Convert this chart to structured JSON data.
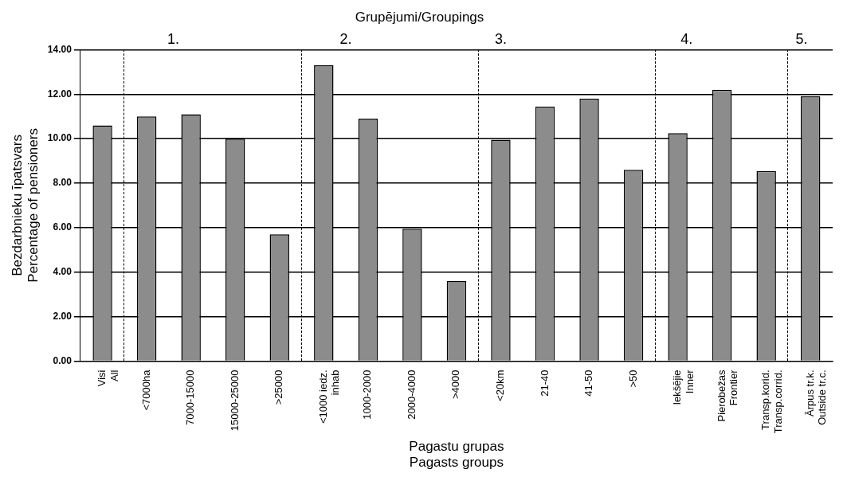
{
  "chart_data": {
    "type": "bar",
    "title": "Grupējumi/Groupings",
    "xlabel": "Pagastu grupas\nPagasts groups",
    "ylabel": "Bezdarbnieku īpatsvars\nPercentage of pensioners",
    "categories": [
      "Visi\nAll",
      "<7000ha",
      "7000-15000",
      "15000-25000",
      ">25000",
      "<1000 iedz.\ninhab",
      "1000-2000",
      "2000-4000",
      ">4000",
      "<20km",
      "21-40",
      "41-50",
      ">50",
      "Iekšējie\nInner",
      "Pierobežas\nFrontier",
      "Transp.korid.\nTransp.corrid.",
      "Ārpus tr.k.\nOutside tr.c."
    ],
    "values": [
      10.6,
      11.0,
      11.1,
      10.0,
      5.7,
      13.3,
      10.9,
      5.95,
      3.6,
      9.95,
      11.45,
      11.8,
      8.6,
      10.25,
      12.2,
      8.55,
      11.9
    ],
    "color": "#8c8c8c",
    "ylim": [
      0,
      14
    ],
    "yticks": [
      {
        "value": 0,
        "label": "0.00"
      },
      {
        "value": 2,
        "label": "2.00"
      },
      {
        "value": 4,
        "label": "4.00"
      },
      {
        "value": 6,
        "label": "6.00"
      },
      {
        "value": 8,
        "label": "8.00"
      },
      {
        "value": 10,
        "label": "10.00"
      },
      {
        "value": 12,
        "label": "12.00"
      },
      {
        "value": 14,
        "label": "14.00"
      }
    ],
    "grid": "y",
    "annotations": [
      "1.",
      "2.",
      "3.",
      "4.",
      "5."
    ]
  }
}
